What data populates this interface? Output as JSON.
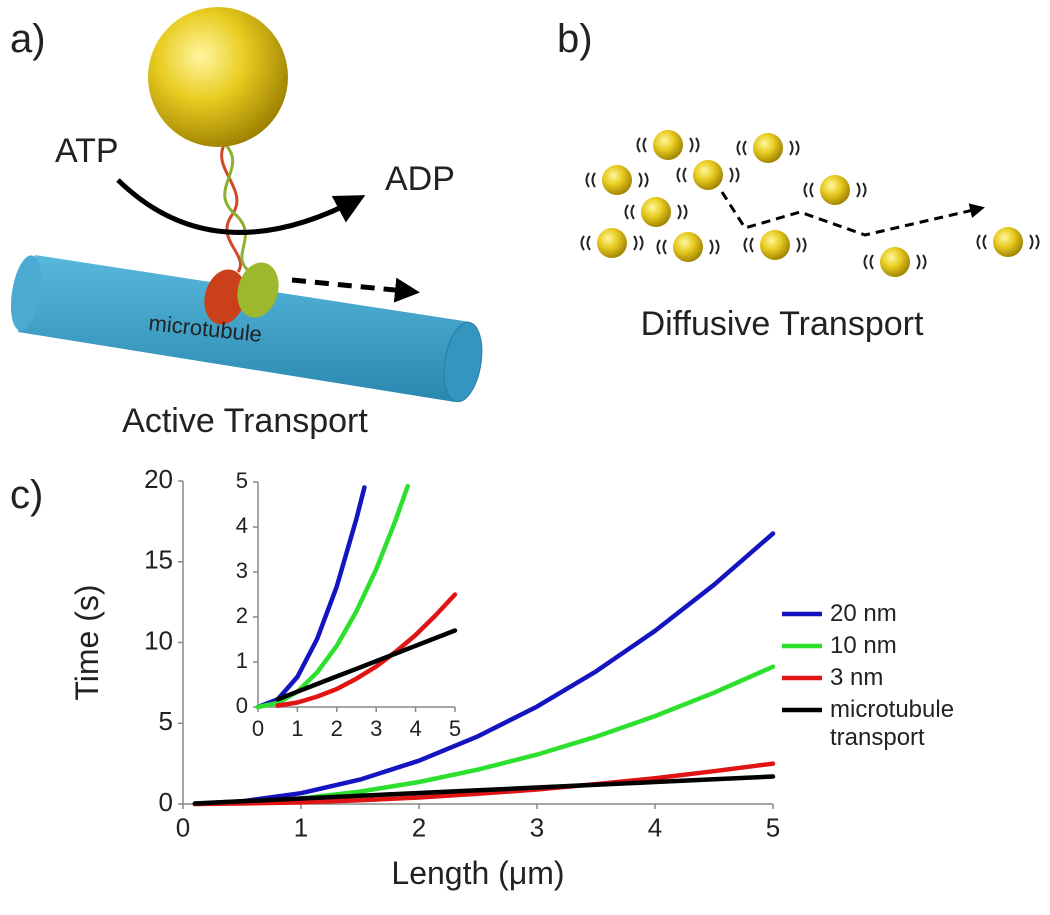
{
  "panels": {
    "a": {
      "label": "a)",
      "atp": "ATP",
      "adp": "ADP",
      "microtubule": "microtubule",
      "caption": "Active Transport"
    },
    "b": {
      "label": "b)",
      "caption": "Diffusive Transport"
    },
    "c": {
      "label": "c)"
    }
  },
  "chart_data": [
    {
      "type": "line",
      "xlabel": "Length (μm)",
      "ylabel": "Time (s)",
      "x": [
        0.1,
        0.5,
        1,
        1.5,
        2,
        2.5,
        3,
        3.5,
        4,
        4.5,
        5
      ],
      "series": [
        {
          "name": "20 nm",
          "color": "#1414c0",
          "values": [
            0.01,
            0.17,
            0.67,
            1.51,
            2.68,
            4.19,
            6.03,
            8.21,
            10.72,
            13.57,
            16.75
          ]
        },
        {
          "name": "10 nm",
          "color": "#2ee02e",
          "values": [
            0,
            0.09,
            0.34,
            0.77,
            1.36,
            2.13,
            3.06,
            4.17,
            5.44,
            6.89,
            8.5
          ]
        },
        {
          "name": "3 nm",
          "color": "#e01414",
          "values": [
            0,
            0.03,
            0.1,
            0.23,
            0.4,
            0.63,
            0.9,
            1.23,
            1.6,
            2.03,
            2.5
          ]
        },
        {
          "name": "microtubule transport",
          "color": "#000000",
          "values": [
            0.03,
            0.17,
            0.34,
            0.51,
            0.68,
            0.85,
            1.02,
            1.19,
            1.36,
            1.53,
            1.7
          ]
        }
      ],
      "xlim": [
        0,
        5
      ],
      "ylim": [
        0,
        20
      ],
      "xticks": [
        0,
        1,
        2,
        3,
        4,
        5
      ],
      "yticks": [
        0,
        5,
        10,
        15,
        20
      ],
      "grid": false,
      "legend": "right"
    },
    {
      "type": "line",
      "series": [
        {
          "color": "#1414c0",
          "x": [
            0,
            0.5,
            1,
            1.5,
            2,
            2.5,
            2.7
          ],
          "values": [
            0,
            0.17,
            0.67,
            1.51,
            2.68,
            4.19,
            4.88
          ]
        },
        {
          "color": "#2ee02e",
          "x": [
            0,
            0.5,
            1,
            1.5,
            2,
            2.5,
            3,
            3.5,
            3.8
          ],
          "values": [
            0,
            0.09,
            0.34,
            0.77,
            1.36,
            2.13,
            3.06,
            4.17,
            4.91
          ]
        },
        {
          "color": "#e01414",
          "x": [
            0.5,
            1,
            1.5,
            2,
            2.5,
            3,
            3.5,
            4,
            4.5,
            5
          ],
          "values": [
            0.03,
            0.1,
            0.23,
            0.4,
            0.63,
            0.9,
            1.23,
            1.6,
            2.03,
            2.5
          ]
        },
        {
          "color": "#000000",
          "x": [
            0.5,
            1,
            1.5,
            2,
            2.5,
            3,
            3.5,
            4,
            4.5,
            5
          ],
          "values": [
            0.17,
            0.34,
            0.51,
            0.68,
            0.85,
            1.02,
            1.19,
            1.36,
            1.53,
            1.7
          ]
        }
      ],
      "xlim": [
        0,
        5
      ],
      "ylim": [
        0,
        5
      ],
      "xticks": [
        0,
        1,
        2,
        3,
        4,
        5
      ],
      "yticks": [
        0,
        1,
        2,
        3,
        4,
        5
      ],
      "grid": false
    }
  ]
}
